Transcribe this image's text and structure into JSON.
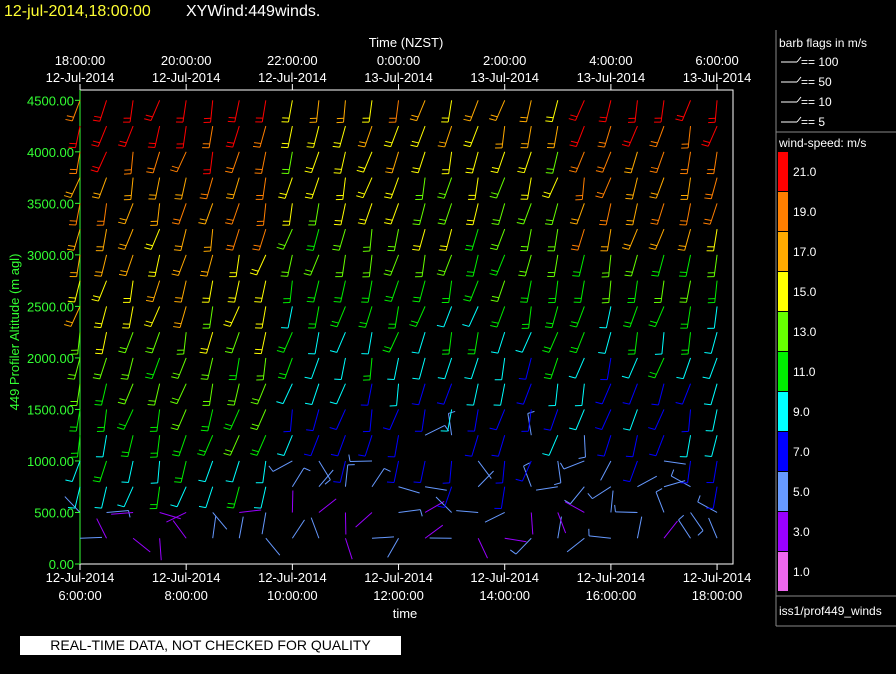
{
  "header": {
    "datetime": "12-jul-2014,18:00:00",
    "title": "XYWind:449winds."
  },
  "chart_data": {
    "type": "scatter",
    "plot_kind": "wind barbs (time-height)",
    "top_axis": {
      "label": "Time (NZST)",
      "ticks": [
        {
          "time": "18:00:00",
          "date": "12-Jul-2014"
        },
        {
          "time": "20:00:00",
          "date": "12-Jul-2014"
        },
        {
          "time": "22:00:00",
          "date": "12-Jul-2014"
        },
        {
          "time": "0:00:00",
          "date": "13-Jul-2014"
        },
        {
          "time": "2:00:00",
          "date": "13-Jul-2014"
        },
        {
          "time": "4:00:00",
          "date": "13-Jul-2014"
        },
        {
          "time": "6:00:00",
          "date": "13-Jul-2014"
        }
      ]
    },
    "bottom_axis": {
      "label": "time",
      "ticks": [
        {
          "date": "12-Jul-2014",
          "time": "6:00:00"
        },
        {
          "date": "12-Jul-2014",
          "time": "8:00:00"
        },
        {
          "date": "12-Jul-2014",
          "time": "10:00:00"
        },
        {
          "date": "12-Jul-2014",
          "time": "12:00:00"
        },
        {
          "date": "12-Jul-2014",
          "time": "14:00:00"
        },
        {
          "date": "12-Jul-2014",
          "time": "16:00:00"
        },
        {
          "date": "12-Jul-2014",
          "time": "18:00:00"
        }
      ],
      "range_hours": [
        6.0,
        18.3
      ]
    },
    "y_axis": {
      "label": "449 Profiler Altitude (m agl)",
      "ticks": [
        "0.00",
        "500.00",
        "1000.00",
        "1500.00",
        "2000.00",
        "2500.00",
        "3000.00",
        "3500.00",
        "4000.00",
        "4500.00"
      ],
      "range": [
        0,
        4600
      ],
      "color": "#33ff33"
    },
    "x_hours": [
      6.0,
      6.5,
      7.0,
      7.5,
      8.0,
      8.5,
      9.0,
      9.5,
      10.0,
      10.5,
      11.0,
      11.5,
      12.0,
      12.5,
      13.0,
      13.5,
      14.0,
      14.5,
      15.0,
      15.5,
      16.0,
      16.5,
      17.0,
      17.5,
      18.0
    ],
    "altitudes_m": [
      250,
      500,
      750,
      1000,
      1250,
      1500,
      1750,
      2000,
      2250,
      2500,
      2750,
      3000,
      3250,
      3500,
      3750,
      4000,
      4250,
      4500
    ],
    "colorbar": {
      "title": "wind-speed: m/s",
      "labels": [
        "21.0",
        "19.0",
        "17.0",
        "15.0",
        "13.0",
        "11.0",
        "9.0",
        "7.0",
        "5.0",
        "3.0",
        "1.0"
      ],
      "bands": [
        {
          "min": 20,
          "color": "#ff0000"
        },
        {
          "min": 18,
          "color": "#ff7f00"
        },
        {
          "min": 16,
          "color": "#ffaa00"
        },
        {
          "min": 14,
          "color": "#ffff00"
        },
        {
          "min": 12,
          "color": "#66ff00"
        },
        {
          "min": 10,
          "color": "#00ee00"
        },
        {
          "min": 8,
          "color": "#00ffff"
        },
        {
          "min": 6,
          "color": "#0000ff"
        },
        {
          "min": 4,
          "color": "#6699ff"
        },
        {
          "min": 2,
          "color": "#9900ff"
        },
        {
          "min": 0,
          "color": "#ee66ee"
        }
      ]
    },
    "barb_legend": {
      "title": "barb flags in m/s",
      "entries": [
        "== 100",
        "== 50",
        "== 10",
        "== 5"
      ]
    },
    "panel_label": "iss1/prof449_winds",
    "notice": "REAL-TIME DATA, NOT CHECKED FOR QUALITY"
  }
}
